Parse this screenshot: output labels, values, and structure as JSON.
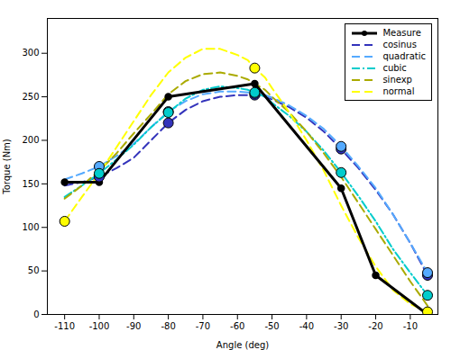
{
  "chart_data": {
    "type": "line",
    "xlabel": "Angle (deg)",
    "ylabel": "Torque (Nm)",
    "xlim": [
      -115,
      -2
    ],
    "ylim": [
      0,
      340
    ],
    "xticks": [
      -110,
      -100,
      -90,
      -80,
      -70,
      -60,
      -50,
      -40,
      -30,
      -20,
      -10
    ],
    "yticks": [
      0,
      50,
      100,
      150,
      200,
      250,
      300
    ],
    "grid": false,
    "legend": "upper right",
    "series": [
      {
        "name": "Measure",
        "color": "#000000",
        "line_style": "solid",
        "marker": "o",
        "x": [
          -110,
          -100,
          -80,
          -55,
          -30,
          -20,
          -5
        ],
        "values": [
          152,
          152,
          250,
          265,
          145,
          45,
          0
        ]
      },
      {
        "name": "cosinus",
        "color": "#3333bb",
        "line_style": "dashed",
        "x": [
          -110,
          -105,
          -100,
          -95,
          -90,
          -85,
          -80,
          -75,
          -70,
          -65,
          -60,
          -57,
          -55,
          -52,
          -50,
          -45,
          -40,
          -35,
          -30,
          -25,
          -20,
          -15,
          -10,
          -5
        ],
        "values": [
          148,
          152,
          158,
          168,
          180,
          200,
          220,
          235,
          245,
          250,
          252,
          252,
          252,
          250,
          247,
          238,
          226,
          210,
          190,
          168,
          143,
          115,
          82,
          45
        ],
        "points_x": [
          -100,
          -80,
          -55,
          -30,
          -5
        ],
        "points_values": [
          158,
          220,
          252,
          190,
          45
        ]
      },
      {
        "name": "quadratic",
        "color": "#55aaff",
        "line_style": "dashed",
        "x": [
          -110,
          -105,
          -100,
          -95,
          -90,
          -85,
          -80,
          -75,
          -70,
          -65,
          -60,
          -57,
          -55,
          -52,
          -50,
          -45,
          -40,
          -35,
          -30,
          -25,
          -20,
          -15,
          -10,
          -5
        ],
        "values": [
          155,
          162,
          170,
          182,
          196,
          215,
          233,
          245,
          253,
          256,
          256,
          255,
          254,
          252,
          249,
          240,
          228,
          213,
          193,
          170,
          145,
          115,
          82,
          48
        ],
        "points_x": [
          -100,
          -80,
          -55,
          -30,
          -5
        ],
        "points_values": [
          170,
          233,
          254,
          193,
          48
        ]
      },
      {
        "name": "cubic",
        "color": "#00cccc",
        "line_style": "dashdot",
        "x": [
          -110,
          -105,
          -100,
          -95,
          -90,
          -85,
          -80,
          -75,
          -70,
          -65,
          -60,
          -57,
          -55,
          -52,
          -50,
          -45,
          -40,
          -35,
          -30,
          -25,
          -20,
          -15,
          -10,
          -5
        ],
        "values": [
          135,
          148,
          162,
          178,
          195,
          215,
          232,
          248,
          258,
          262,
          260,
          258,
          255,
          250,
          243,
          228,
          210,
          188,
          163,
          136,
          107,
          75,
          48,
          22
        ],
        "points_x": [
          -100,
          -80,
          -55,
          -30,
          -5
        ],
        "points_values": [
          162,
          232,
          255,
          163,
          22
        ]
      },
      {
        "name": "sinexp",
        "color": "#aaaa00",
        "line_style": "dashed",
        "x": [
          -110,
          -105,
          -100,
          -95,
          -90,
          -85,
          -80,
          -75,
          -70,
          -65,
          -60,
          -57,
          -55,
          -52,
          -50,
          -45,
          -40,
          -35,
          -30,
          -25,
          -20,
          -15,
          -10,
          -5
        ],
        "values": [
          133,
          148,
          165,
          185,
          208,
          230,
          253,
          268,
          276,
          278,
          274,
          270,
          265,
          258,
          250,
          232,
          210,
          185,
          158,
          128,
          98,
          68,
          38,
          10
        ]
      },
      {
        "name": "normal",
        "color": "#ffff00",
        "line_style": "dashed",
        "x": [
          -110,
          -105,
          -100,
          -95,
          -90,
          -85,
          -80,
          -75,
          -70,
          -65,
          -60,
          -57,
          -55,
          -52,
          -50,
          -45,
          -40,
          -35,
          -30,
          -25,
          -20,
          -15,
          -10,
          -5
        ],
        "values": [
          107,
          135,
          162,
          192,
          222,
          252,
          278,
          295,
          305,
          305,
          298,
          292,
          283,
          272,
          260,
          232,
          200,
          165,
          125,
          88,
          55,
          28,
          12,
          3
        ],
        "points_x": [
          -110,
          -55,
          -5
        ],
        "points_values": [
          107,
          283,
          3
        ]
      }
    ]
  }
}
